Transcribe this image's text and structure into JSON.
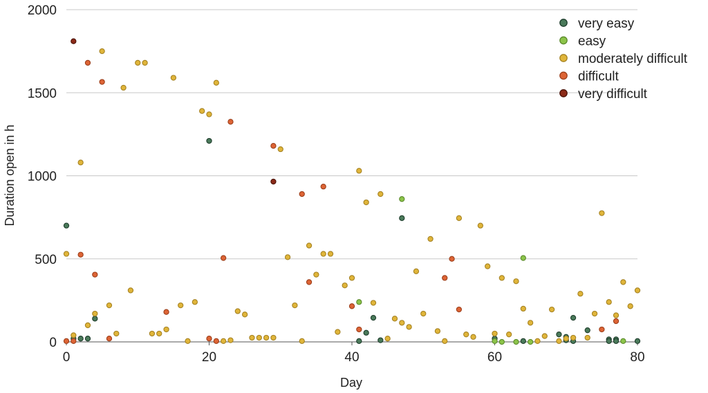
{
  "chart_data": {
    "type": "scatter",
    "title": "",
    "xlabel": "Day",
    "ylabel": "Duration open in h",
    "xlim": [
      0,
      80
    ],
    "ylim": [
      0,
      2000
    ],
    "xticks": [
      0,
      20,
      40,
      60,
      80
    ],
    "yticks": [
      0,
      500,
      1000,
      1500,
      2000
    ],
    "x_tick_labels": [
      "0",
      "20",
      "40",
      "60",
      "80"
    ],
    "y_tick_labels": [
      "0",
      "500",
      "1000",
      "1500",
      "2000"
    ],
    "grid": "horizontal",
    "legend_position": "top-right",
    "series": [
      {
        "name": "very easy",
        "color": "#4a7a5a",
        "border": "#1e3d2c",
        "points": [
          [
            0,
            700
          ],
          [
            1,
            20
          ],
          [
            2,
            20
          ],
          [
            3,
            20
          ],
          [
            4,
            140
          ],
          [
            20,
            1210
          ],
          [
            41,
            5
          ],
          [
            42,
            55
          ],
          [
            43,
            145
          ],
          [
            44,
            10
          ],
          [
            47,
            745
          ],
          [
            60,
            20
          ],
          [
            64,
            5
          ],
          [
            69,
            45
          ],
          [
            70,
            30
          ],
          [
            70,
            10
          ],
          [
            71,
            145
          ],
          [
            71,
            5
          ],
          [
            73,
            70
          ],
          [
            76,
            15
          ],
          [
            76,
            5
          ],
          [
            77,
            15
          ],
          [
            77,
            5
          ],
          [
            80,
            5
          ]
        ]
      },
      {
        "name": "easy",
        "color": "#8cc44a",
        "border": "#5b8a2c",
        "points": [
          [
            41,
            240
          ],
          [
            47,
            860
          ],
          [
            60,
            5
          ],
          [
            61,
            0
          ],
          [
            63,
            0
          ],
          [
            64,
            505
          ],
          [
            65,
            0
          ],
          [
            78,
            5
          ]
        ]
      },
      {
        "name": "moderately difficult",
        "color": "#e0b53a",
        "border": "#a58222",
        "points": [
          [
            0,
            530
          ],
          [
            1,
            40
          ],
          [
            2,
            1080
          ],
          [
            3,
            100
          ],
          [
            4,
            170
          ],
          [
            5,
            1750
          ],
          [
            6,
            220
          ],
          [
            7,
            50
          ],
          [
            8,
            1530
          ],
          [
            9,
            310
          ],
          [
            10,
            1680
          ],
          [
            11,
            1680
          ],
          [
            12,
            50
          ],
          [
            13,
            50
          ],
          [
            14,
            75
          ],
          [
            15,
            1590
          ],
          [
            16,
            220
          ],
          [
            17,
            5
          ],
          [
            18,
            240
          ],
          [
            19,
            1390
          ],
          [
            20,
            1370
          ],
          [
            21,
            1560
          ],
          [
            22,
            5
          ],
          [
            23,
            10
          ],
          [
            24,
            185
          ],
          [
            25,
            165
          ],
          [
            26,
            25
          ],
          [
            27,
            25
          ],
          [
            28,
            25
          ],
          [
            29,
            25
          ],
          [
            30,
            1160
          ],
          [
            31,
            510
          ],
          [
            32,
            220
          ],
          [
            33,
            5
          ],
          [
            34,
            580
          ],
          [
            35,
            405
          ],
          [
            36,
            530
          ],
          [
            37,
            530
          ],
          [
            38,
            60
          ],
          [
            39,
            340
          ],
          [
            40,
            385
          ],
          [
            41,
            1030
          ],
          [
            42,
            840
          ],
          [
            43,
            235
          ],
          [
            44,
            890
          ],
          [
            45,
            20
          ],
          [
            46,
            140
          ],
          [
            47,
            115
          ],
          [
            48,
            90
          ],
          [
            49,
            425
          ],
          [
            50,
            170
          ],
          [
            51,
            620
          ],
          [
            52,
            65
          ],
          [
            53,
            5
          ],
          [
            55,
            745
          ],
          [
            56,
            45
          ],
          [
            57,
            30
          ],
          [
            58,
            700
          ],
          [
            59,
            455
          ],
          [
            60,
            50
          ],
          [
            61,
            385
          ],
          [
            62,
            45
          ],
          [
            63,
            365
          ],
          [
            64,
            200
          ],
          [
            65,
            115
          ],
          [
            66,
            5
          ],
          [
            67,
            35
          ],
          [
            68,
            195
          ],
          [
            69,
            5
          ],
          [
            70,
            20
          ],
          [
            71,
            25
          ],
          [
            72,
            290
          ],
          [
            73,
            25
          ],
          [
            74,
            170
          ],
          [
            75,
            775
          ],
          [
            76,
            240
          ],
          [
            77,
            160
          ],
          [
            78,
            360
          ],
          [
            79,
            215
          ],
          [
            80,
            310
          ]
        ]
      },
      {
        "name": "difficult",
        "color": "#dd6435",
        "border": "#9c3f1b",
        "points": [
          [
            0,
            5
          ],
          [
            1,
            5
          ],
          [
            2,
            525
          ],
          [
            3,
            1680
          ],
          [
            4,
            405
          ],
          [
            5,
            1565
          ],
          [
            6,
            20
          ],
          [
            14,
            180
          ],
          [
            20,
            20
          ],
          [
            21,
            5
          ],
          [
            22,
            505
          ],
          [
            23,
            1325
          ],
          [
            29,
            1180
          ],
          [
            33,
            890
          ],
          [
            34,
            360
          ],
          [
            36,
            935
          ],
          [
            40,
            215
          ],
          [
            41,
            75
          ],
          [
            53,
            385
          ],
          [
            54,
            500
          ],
          [
            55,
            195
          ],
          [
            75,
            75
          ],
          [
            77,
            125
          ]
        ]
      },
      {
        "name": "very difficult",
        "color": "#8c2a18",
        "border": "#4a1208",
        "points": [
          [
            1,
            1810
          ],
          [
            29,
            965
          ]
        ]
      }
    ]
  }
}
